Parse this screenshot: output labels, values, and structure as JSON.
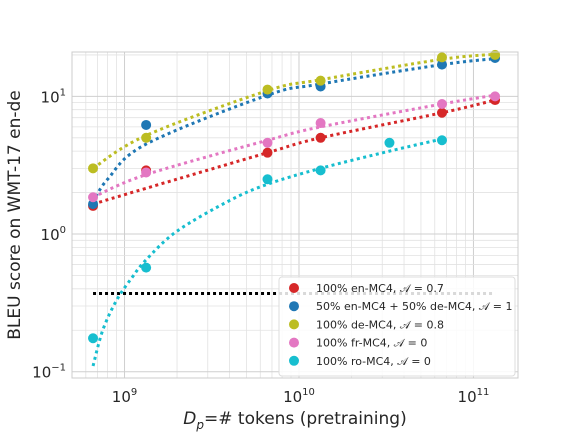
{
  "chart_data": {
    "type": "scatter",
    "xlabel": "D_p=# tokens (pretraining)",
    "xlabel_main": "D",
    "xlabel_sub": "p",
    "xlabel_rest": "=# tokens (pretraining)",
    "ylabel": "BLEU score on WMT-17 en-de",
    "x_scale": "log",
    "y_scale": "log",
    "xlim": [
      500000000.0,
      180000000000.0
    ],
    "ylim": [
      0.09,
      21
    ],
    "x_ticks": [
      {
        "value": 1000000000.0,
        "base": "10",
        "exp": "9"
      },
      {
        "value": 10000000000.0,
        "base": "10",
        "exp": "10"
      },
      {
        "value": 100000000000.0,
        "base": "10",
        "exp": "11"
      }
    ],
    "y_ticks": [
      {
        "value": 0.1,
        "base": "10",
        "exp": "−1"
      },
      {
        "value": 1,
        "base": "10",
        "exp": "0"
      },
      {
        "value": 10,
        "base": "10",
        "exp": "1"
      }
    ],
    "grid": true,
    "legend_position": "lower-right",
    "series": [
      {
        "name": "100% en-MC4, 𝒜 = 0.7",
        "color": "#d62728",
        "points": [
          [
            660000000.0,
            1.6
          ],
          [
            1330000000.0,
            2.9
          ],
          [
            6600000000.0,
            3.9
          ],
          [
            13300000000.0,
            5.0
          ],
          [
            66000000000.0,
            7.6
          ],
          [
            133000000000.0,
            9.4
          ]
        ],
        "fit": [
          [
            660000000.0,
            1.65
          ],
          [
            1330000000.0,
            2.15
          ],
          [
            6600000000.0,
            3.9
          ],
          [
            13300000000.0,
            5.0
          ],
          [
            66000000000.0,
            7.6
          ],
          [
            133000000000.0,
            9.4
          ]
        ]
      },
      {
        "name": "50% en-MC4 + 50% de-MC4, 𝒜 = 1",
        "color": "#1f77b4",
        "points": [
          [
            660000000.0,
            1.65
          ],
          [
            1330000000.0,
            6.2
          ],
          [
            6600000000.0,
            10.5
          ],
          [
            13300000000.0,
            11.8
          ],
          [
            66000000000.0,
            17.0
          ],
          [
            133000000000.0,
            19.0
          ]
        ],
        "fit": [
          [
            660000000.0,
            1.7
          ],
          [
            800000000.0,
            2.5
          ],
          [
            1330000000.0,
            4.5
          ],
          [
            6600000000.0,
            10.2
          ],
          [
            13300000000.0,
            12.3
          ],
          [
            66000000000.0,
            17.0
          ],
          [
            133000000000.0,
            18.8
          ]
        ]
      },
      {
        "name": "100% de-MC4, 𝒜 = 0.8",
        "color": "#bcbd22",
        "points": [
          [
            660000000.0,
            3.0
          ],
          [
            1330000000.0,
            5.0
          ],
          [
            6600000000.0,
            11.2
          ],
          [
            13300000000.0,
            13.0
          ],
          [
            66000000000.0,
            19.2
          ],
          [
            133000000000.0,
            20.0
          ]
        ],
        "fit": [
          [
            660000000.0,
            3.0
          ],
          [
            1330000000.0,
            5.2
          ],
          [
            6600000000.0,
            11.0
          ],
          [
            13300000000.0,
            13.2
          ],
          [
            66000000000.0,
            18.6
          ],
          [
            133000000000.0,
            20.2
          ]
        ]
      },
      {
        "name": "100% fr-MC4, 𝒜 = 0",
        "color": "#e377c2",
        "points": [
          [
            660000000.0,
            1.85
          ],
          [
            1330000000.0,
            2.8
          ],
          [
            6600000000.0,
            4.6
          ],
          [
            13300000000.0,
            6.4
          ],
          [
            66000000000.0,
            8.8
          ],
          [
            133000000000.0,
            10.0
          ]
        ],
        "fit": [
          [
            660000000.0,
            1.85
          ],
          [
            1330000000.0,
            2.7
          ],
          [
            6600000000.0,
            4.8
          ],
          [
            13300000000.0,
            6.0
          ],
          [
            66000000000.0,
            8.8
          ],
          [
            133000000000.0,
            10.2
          ]
        ]
      },
      {
        "name": "100% ro-MC4, 𝒜 = 0",
        "color": "#17becf",
        "points": [
          [
            660000000.0,
            0.175
          ],
          [
            1330000000.0,
            0.57
          ],
          [
            6600000000.0,
            2.5
          ],
          [
            13300000000.0,
            2.9
          ],
          [
            33000000000.0,
            4.6
          ],
          [
            66000000000.0,
            4.8
          ]
        ],
        "fit": [
          [
            660000000.0,
            0.11
          ],
          [
            750000000.0,
            0.2
          ],
          [
            900000000.0,
            0.33
          ],
          [
            1100000000.0,
            0.48
          ],
          [
            1330000000.0,
            0.65
          ],
          [
            2000000000.0,
            1.05
          ],
          [
            4000000000.0,
            1.75
          ],
          [
            6600000000.0,
            2.3
          ],
          [
            13300000000.0,
            3.0
          ],
          [
            33000000000.0,
            4.0
          ],
          [
            66000000000.0,
            4.9
          ]
        ]
      }
    ],
    "reference_line": {
      "color": "#000000",
      "y": 0.37,
      "x_start": 660000000.0,
      "x_end": 133000000000.0
    }
  }
}
